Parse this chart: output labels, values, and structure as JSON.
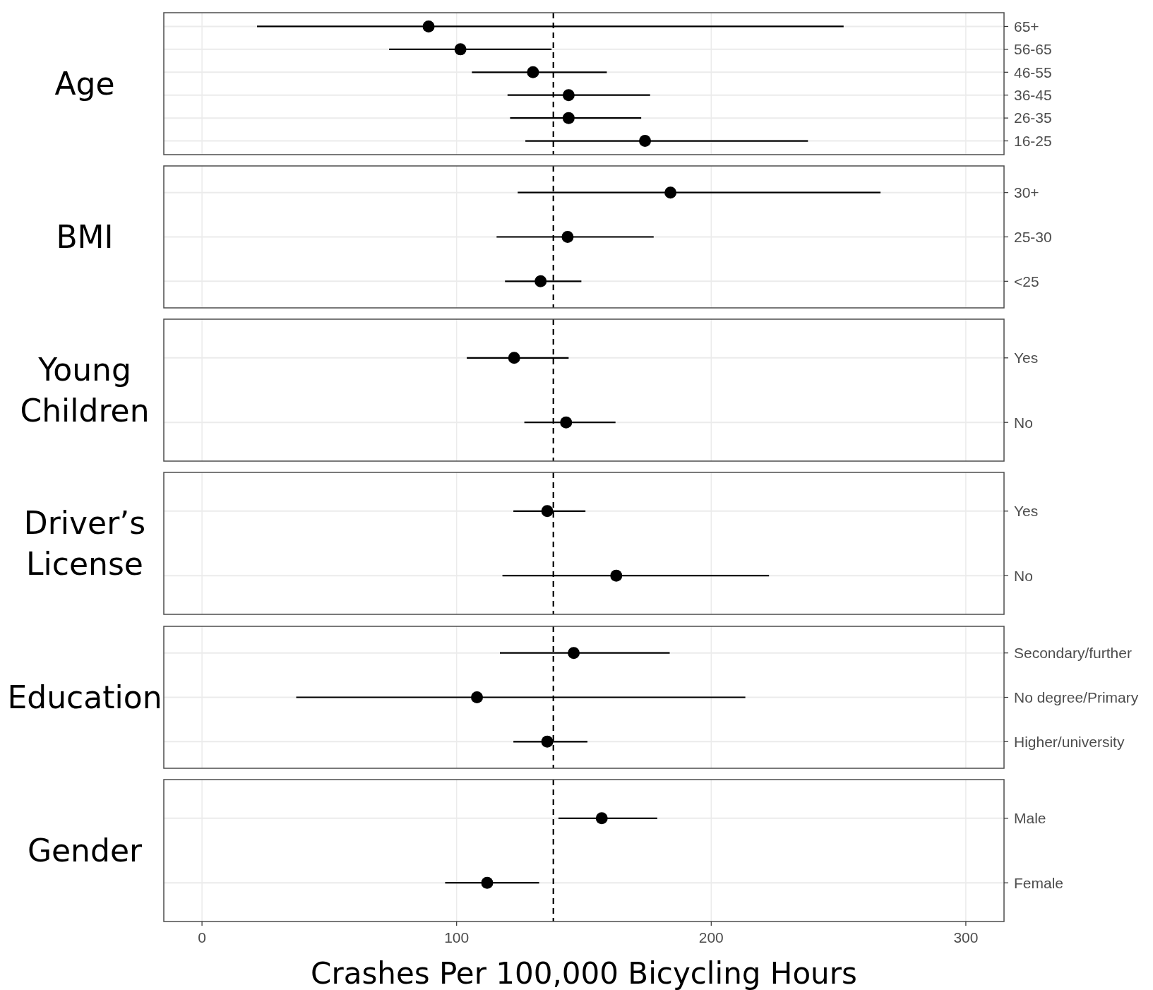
{
  "chart_data": [
    {
      "type": "scatter",
      "orientation": "horizontal",
      "ylabel": "Age",
      "categories": [
        "65+",
        "56-65",
        "46-55",
        "36-45",
        "26-35",
        "16-25"
      ],
      "values": [
        89,
        101.5,
        130,
        144,
        144,
        174
      ],
      "errors": [
        [
          21.6,
          252
        ],
        [
          73.5,
          137.3
        ],
        [
          106,
          159
        ],
        [
          120,
          176
        ],
        [
          121,
          172.5
        ],
        [
          127,
          238
        ]
      ],
      "color": "#000000",
      "marker": "circle",
      "xlim": [
        -15,
        315
      ],
      "xticks": [
        0,
        100,
        200,
        300
      ],
      "tick_labels": "y",
      "grid": true,
      "ref_lines": [
        {
          "axis": "x",
          "value": 138,
          "line_style": "dashed",
          "color": "#000000"
        }
      ]
    },
    {
      "type": "scatter",
      "orientation": "horizontal",
      "ylabel": "BMI",
      "categories": [
        "30+",
        "25-30",
        "<25"
      ],
      "values": [
        184,
        143.6,
        133
      ],
      "errors": [
        [
          124,
          266.5
        ],
        [
          115.7,
          177.4
        ],
        [
          119,
          149
        ]
      ],
      "color": "#000000",
      "marker": "circle",
      "xlim": [
        -15,
        315
      ],
      "xticks": [
        0,
        100,
        200,
        300
      ],
      "tick_labels": "y",
      "grid": true,
      "ref_lines": [
        {
          "axis": "x",
          "value": 138,
          "line_style": "dashed",
          "color": "#000000"
        }
      ]
    },
    {
      "type": "scatter",
      "orientation": "horizontal",
      "ylabel": "Young Children",
      "categories": [
        "Yes",
        "No"
      ],
      "values": [
        122.6,
        143
      ],
      "errors": [
        [
          104,
          144
        ],
        [
          126.6,
          162.4
        ]
      ],
      "color": "#000000",
      "marker": "circle",
      "xlim": [
        -15,
        315
      ],
      "xticks": [
        0,
        100,
        200,
        300
      ],
      "tick_labels": "y",
      "grid": true,
      "ref_lines": [
        {
          "axis": "x",
          "value": 138,
          "line_style": "dashed",
          "color": "#000000"
        }
      ]
    },
    {
      "type": "scatter",
      "orientation": "horizontal",
      "ylabel": "Driver’s License",
      "categories": [
        "Yes",
        "No"
      ],
      "values": [
        135.6,
        162.7
      ],
      "errors": [
        [
          122.3,
          150.6
        ],
        [
          118,
          222.7
        ]
      ],
      "color": "#000000",
      "marker": "circle",
      "xlim": [
        -15,
        315
      ],
      "xticks": [
        0,
        100,
        200,
        300
      ],
      "tick_labels": "y",
      "grid": true,
      "ref_lines": [
        {
          "axis": "x",
          "value": 138,
          "line_style": "dashed",
          "color": "#000000"
        }
      ]
    },
    {
      "type": "scatter",
      "orientation": "horizontal",
      "ylabel": "Education",
      "categories": [
        "Secondary/further",
        "No degree/Primary",
        "Higher/university"
      ],
      "values": [
        146,
        108,
        135.6
      ],
      "errors": [
        [
          117,
          183.7
        ],
        [
          37,
          213.4
        ],
        [
          122.3,
          151.4
        ]
      ],
      "color": "#000000",
      "marker": "circle",
      "xlim": [
        -15,
        315
      ],
      "xticks": [
        0,
        100,
        200,
        300
      ],
      "tick_labels": "y",
      "grid": true,
      "ref_lines": [
        {
          "axis": "x",
          "value": 138,
          "line_style": "dashed",
          "color": "#000000"
        }
      ]
    },
    {
      "type": "scatter",
      "orientation": "horizontal",
      "ylabel": "Gender",
      "xlabel": "Crashes Per 100,000 Bicycling Hours",
      "categories": [
        "Male",
        "Female"
      ],
      "values": [
        157,
        112
      ],
      "errors": [
        [
          140,
          178.8
        ],
        [
          95.5,
          132.4
        ]
      ],
      "color": "#000000",
      "marker": "circle",
      "xlim": [
        -15,
        315
      ],
      "xticks": [
        0,
        100,
        200,
        300
      ],
      "grid": true,
      "ref_lines": [
        {
          "axis": "x",
          "value": 138,
          "line_style": "dashed",
          "color": "#000000"
        }
      ]
    }
  ]
}
